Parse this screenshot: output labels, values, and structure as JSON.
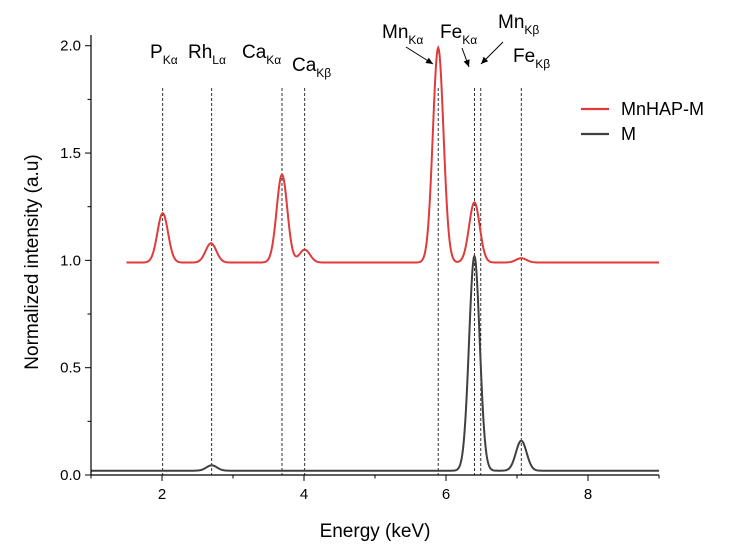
{
  "chart_data": {
    "type": "line",
    "xlabel": "Energy (keV)",
    "ylabel": "Normalized intensity (a.u)",
    "xlim": [
      1,
      9
    ],
    "ylim": [
      0.0,
      2.05
    ],
    "x_ticks": [
      2,
      4,
      6,
      8
    ],
    "x_tick_labels": [
      "2",
      "4",
      "6",
      "8"
    ],
    "y_ticks": [
      0.0,
      0.5,
      1.0,
      1.5,
      2.0
    ],
    "y_tick_labels": [
      "0.0",
      "0.5",
      "1.0",
      "1.5",
      "2.0"
    ],
    "legend_position": "right",
    "series": [
      {
        "name": "MnHAP-M",
        "color": "#e03a3a",
        "x_start": 1.5,
        "x_end": 9.0,
        "baseline": 0.99,
        "peaks": [
          {
            "x": 2.01,
            "y": 1.22
          },
          {
            "x": 2.69,
            "y": 1.08
          },
          {
            "x": 3.69,
            "y": 1.4
          },
          {
            "x": 4.01,
            "y": 1.05
          },
          {
            "x": 5.89,
            "y": 1.99
          },
          {
            "x": 6.4,
            "y": 1.27
          },
          {
            "x": 7.06,
            "y": 1.01
          }
        ]
      },
      {
        "name": "M",
        "color": "#404040",
        "x_start": 1.0,
        "x_end": 9.0,
        "baseline": 0.02,
        "peaks": [
          {
            "x": 2.7,
            "y": 0.045
          },
          {
            "x": 6.4,
            "y": 1.02
          },
          {
            "x": 7.06,
            "y": 0.16
          }
        ]
      }
    ],
    "reference_lines": [
      {
        "x": 2.01,
        "label": "P",
        "sub": "Kα"
      },
      {
        "x": 2.7,
        "label": "Rh",
        "sub": "Lα"
      },
      {
        "x": 3.69,
        "label": "Ca",
        "sub": "Kα"
      },
      {
        "x": 4.01,
        "label": "Ca",
        "sub": "Kβ"
      },
      {
        "x": 5.89,
        "label": "Mn",
        "sub": "Kα"
      },
      {
        "x": 6.4,
        "label": "Fe",
        "sub": "Kα"
      },
      {
        "x": 6.49,
        "label": "Mn",
        "sub": "Kβ"
      },
      {
        "x": 7.06,
        "label": "Fe",
        "sub": "Kβ"
      }
    ]
  }
}
